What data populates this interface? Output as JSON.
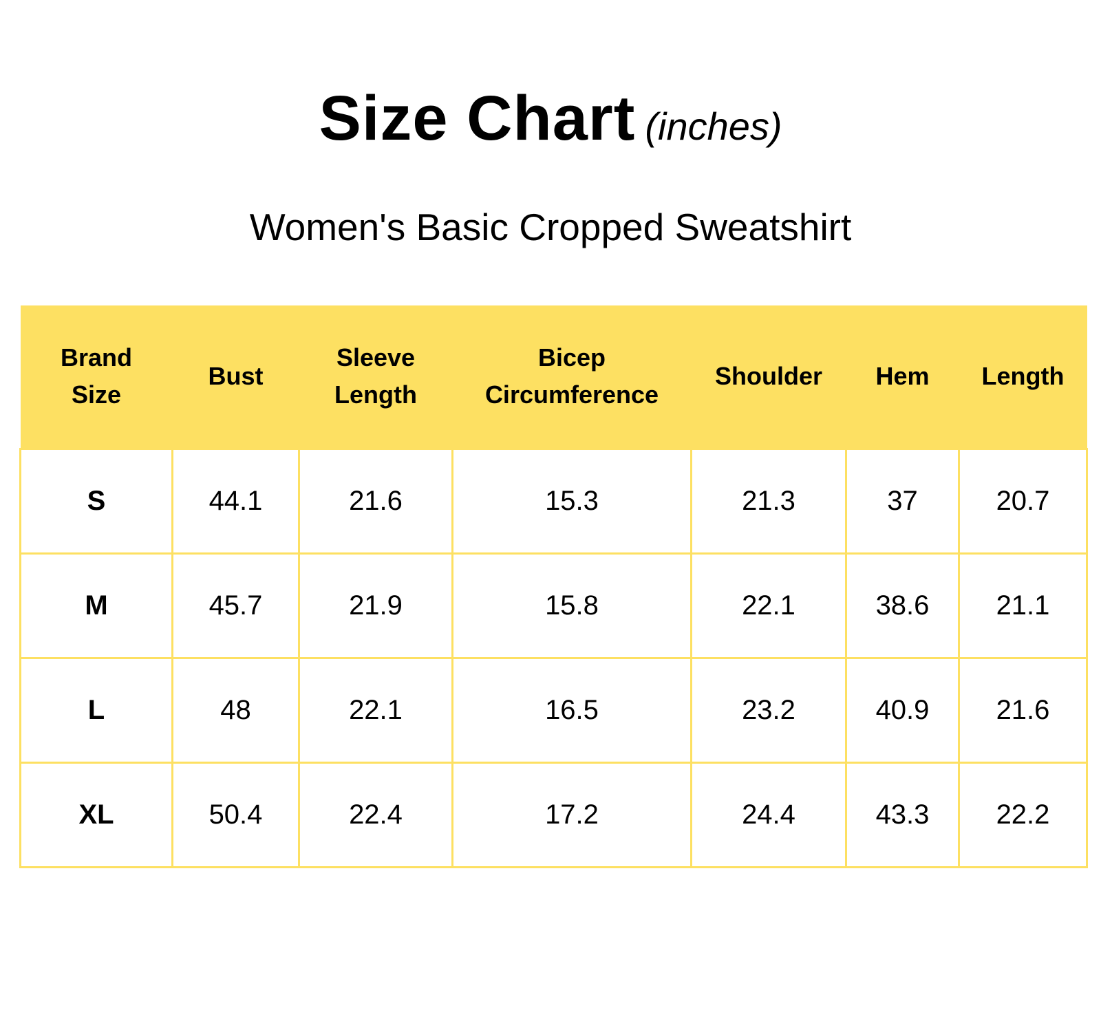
{
  "title": {
    "main": "Size Chart",
    "unit": "(inches)"
  },
  "subtitle": "Women's Basic Cropped Sweatshirt",
  "colors": {
    "accent": "#fde062",
    "text": "#000000",
    "background": "#ffffff"
  },
  "table": {
    "headers": [
      [
        "Brand",
        "Size"
      ],
      [
        "Bust"
      ],
      [
        "Sleeve",
        "Length"
      ],
      [
        "Bicep",
        "Circumference"
      ],
      [
        "Shoulder"
      ],
      [
        "Hem"
      ],
      [
        "Length"
      ]
    ],
    "rows": [
      [
        "S",
        "44.1",
        "21.6",
        "15.3",
        "21.3",
        "37",
        "20.7"
      ],
      [
        "M",
        "45.7",
        "21.9",
        "15.8",
        "22.1",
        "38.6",
        "21.1"
      ],
      [
        "L",
        "48",
        "22.1",
        "16.5",
        "23.2",
        "40.9",
        "21.6"
      ],
      [
        "XL",
        "50.4",
        "22.4",
        "17.2",
        "24.4",
        "43.3",
        "22.2"
      ]
    ]
  }
}
